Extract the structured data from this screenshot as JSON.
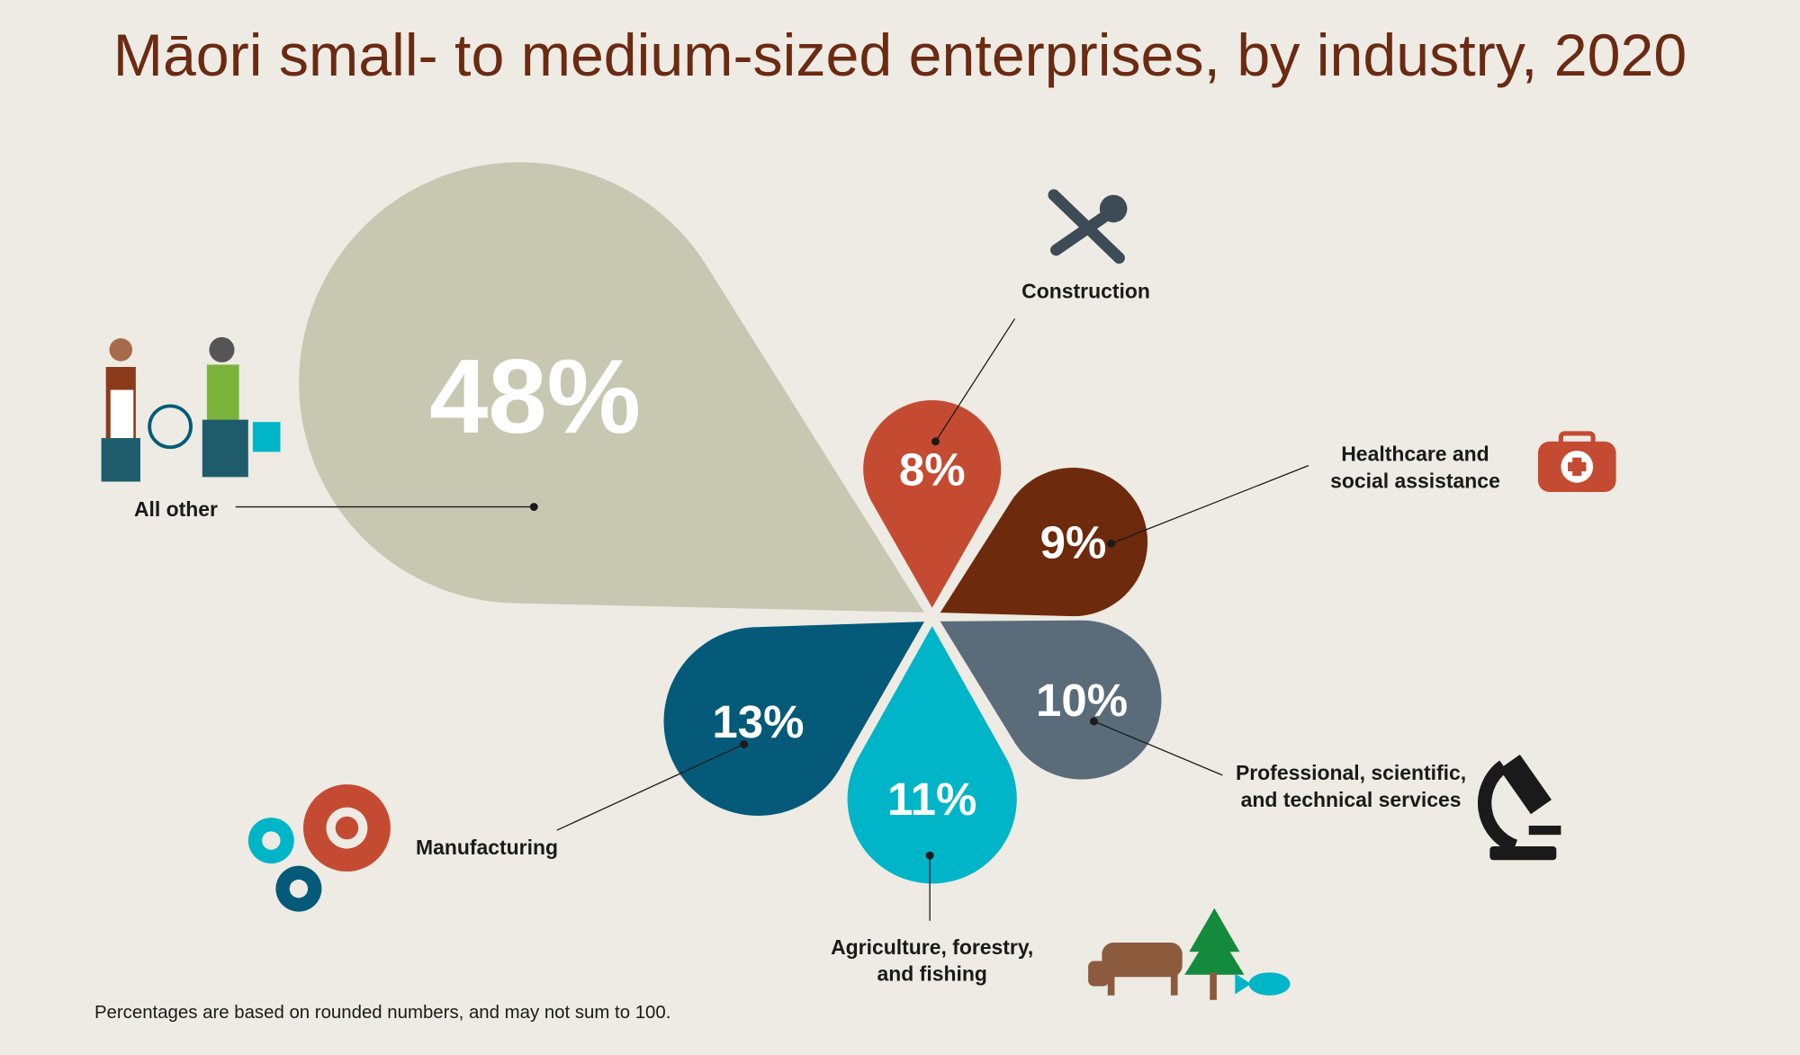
{
  "chart_data": {
    "type": "petal",
    "title": "Māori small- to medium-sized enterprises, by industry, 2020",
    "categories": [
      "All other",
      "Construction",
      "Healthcare and\nsocial assistance",
      "Professional, scientific,\nand technical services",
      "Agriculture, forestry,\nand fishing",
      "Manufacturing"
    ],
    "values": [
      48,
      8,
      9,
      10,
      11,
      13
    ],
    "value_labels": [
      "48%",
      "8%",
      "9%",
      "10%",
      "11%",
      "13%"
    ],
    "colors": [
      "#c8c7b1",
      "#c44b32",
      "#6e2a0c",
      "#5a6c7a",
      "#00b5c8",
      "#045a78"
    ],
    "footnote": "Percentages are based on rounded numbers, and may not sum to 100."
  }
}
